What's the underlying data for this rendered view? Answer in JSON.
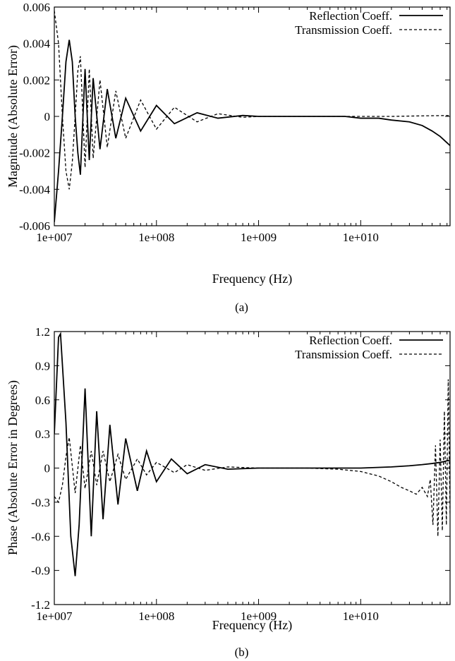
{
  "chart_data": [
    {
      "type": "line",
      "caption": "(a)",
      "xlabel": "Frequency (Hz)",
      "ylabel": "Magnitude (Absolute Error)",
      "xscale": "log",
      "xlim": [
        10000000.0,
        75000000000.0
      ],
      "ylim": [
        -0.006,
        0.006
      ],
      "xticks": [
        "1e+007",
        "1e+008",
        "1e+009",
        "1e+010"
      ],
      "xtick_values": [
        10000000.0,
        100000000.0,
        1000000000.0,
        10000000000.0
      ],
      "yticks": [
        "0.006",
        "0.004",
        "0.002",
        "0",
        "-0.002",
        "-0.004",
        "-0.006"
      ],
      "ytick_values": [
        0.006,
        0.004,
        0.002,
        0,
        -0.002,
        -0.004,
        -0.006
      ],
      "legend_position": "top-right",
      "series": [
        {
          "name": "Reflection Coeff.",
          "style": "solid",
          "x": [
            10000000.0,
            11000000.0,
            12000000.0,
            13000000.0,
            14000000.0,
            15000000.0,
            16000000.0,
            17000000.0,
            18000000.0,
            20000000.0,
            22000000.0,
            24000000.0,
            28000000.0,
            33000000.0,
            40000000.0,
            50000000.0,
            70000000.0,
            100000000.0,
            150000000.0,
            250000000.0,
            400000000.0,
            700000000.0,
            1000000000.0,
            3000000000.0,
            7000000000.0,
            10000000000.0,
            15000000000.0,
            20000000000.0,
            30000000000.0,
            40000000000.0,
            50000000000.0,
            60000000000.0,
            75000000000.0
          ],
          "y": [
            -0.0058,
            -0.003,
            0.0,
            0.003,
            0.0042,
            0.003,
            0.0,
            -0.002,
            -0.0032,
            0.0026,
            -0.0024,
            0.0021,
            -0.0018,
            0.0015,
            -0.0012,
            0.001,
            -0.0008,
            0.0006,
            -0.0004,
            0.0002,
            -0.0001,
            5e-05,
            0.0,
            0.0,
            0.0,
            -0.0001,
            -0.0001,
            -0.0002,
            -0.0003,
            -0.0005,
            -0.0008,
            -0.0011,
            -0.0016
          ]
        },
        {
          "name": "Transmission Coeff.",
          "style": "dashed",
          "x": [
            10000000.0,
            11000000.0,
            12000000.0,
            13000000.0,
            14000000.0,
            15000000.0,
            16000000.0,
            17000000.0,
            18000000.0,
            20000000.0,
            22000000.0,
            24000000.0,
            28000000.0,
            33000000.0,
            40000000.0,
            50000000.0,
            70000000.0,
            100000000.0,
            150000000.0,
            250000000.0,
            400000000.0,
            700000000.0,
            1000000000.0,
            3000000000.0,
            7000000000.0,
            10000000000.0,
            20000000000.0,
            40000000000.0,
            75000000000.0
          ],
          "y": [
            0.0058,
            0.004,
            0.0,
            -0.003,
            -0.004,
            -0.0025,
            0.0,
            0.0025,
            0.0033,
            -0.0028,
            0.0026,
            -0.0023,
            0.002,
            -0.0017,
            0.0014,
            -0.0012,
            0.0009,
            -0.0007,
            0.0005,
            -0.0003,
            0.00015,
            -5e-05,
            0.0,
            0.0,
            0.0,
            0.0,
            0.0,
            3e-05,
            5e-05
          ]
        }
      ]
    },
    {
      "type": "line",
      "caption": "(b)",
      "xlabel": "Frequency (Hz)",
      "ylabel": "Phase (Absolute Error in Degrees)",
      "xscale": "log",
      "xlim": [
        10000000.0,
        75000000000.0
      ],
      "ylim": [
        -1.2,
        1.2
      ],
      "xticks": [
        "1e+007",
        "1e+008",
        "1e+009",
        "1e+010"
      ],
      "xtick_values": [
        10000000.0,
        100000000.0,
        1000000000.0,
        10000000000.0
      ],
      "yticks": [
        "1.2",
        "0.9",
        "0.6",
        "0.3",
        "0",
        "-0.3",
        "-0.6",
        "-0.9",
        "-1.2"
      ],
      "ytick_values": [
        1.2,
        0.9,
        0.6,
        0.3,
        0,
        -0.3,
        -0.6,
        -0.9,
        -1.2
      ],
      "legend_position": "top-right",
      "series": [
        {
          "name": "Reflection Coeff.",
          "style": "solid",
          "x": [
            10000000.0,
            11000000.0,
            11500000.0,
            13000000.0,
            14500000.0,
            16000000.0,
            17500000.0,
            20000000.0,
            23000000.0,
            26000000.0,
            30000000.0,
            35000000.0,
            42000000.0,
            50000000.0,
            65000000.0,
            80000000.0,
            100000000.0,
            140000000.0,
            200000000.0,
            300000000.0,
            500000000.0,
            1000000000.0,
            3000000000.0,
            7000000000.0,
            10000000000.0,
            20000000000.0,
            30000000000.0,
            40000000000.0,
            50000000000.0,
            60000000000.0,
            75000000000.0
          ],
          "y": [
            0.3,
            1.15,
            1.18,
            0.4,
            -0.6,
            -0.95,
            -0.5,
            0.7,
            -0.6,
            0.5,
            -0.45,
            0.38,
            -0.32,
            0.26,
            -0.2,
            0.15,
            -0.12,
            0.08,
            -0.05,
            0.03,
            -0.01,
            0.0,
            0.0,
            0.0,
            0.0,
            0.01,
            0.02,
            0.03,
            0.04,
            0.05,
            0.07
          ]
        },
        {
          "name": "Transmission Coeff.",
          "style": "dashed",
          "x": [
            10000000.0,
            11000000.0,
            12000000.0,
            13000000.0,
            14000000.0,
            16000000.0,
            18000000.0,
            20000000.0,
            23000000.0,
            26000000.0,
            30000000.0,
            35000000.0,
            42000000.0,
            50000000.0,
            65000000.0,
            80000000.0,
            100000000.0,
            150000000.0,
            200000000.0,
            300000000.0,
            500000000.0,
            1000000000.0,
            3000000000.0,
            6000000000.0,
            10000000000.0,
            15000000000.0,
            20000000000.0,
            25000000000.0,
            30000000000.0,
            35000000000.0,
            40000000000.0,
            45000000000.0,
            48000000000.0,
            51000000000.0,
            54000000000.0,
            57000000000.0,
            60000000000.0,
            63000000000.0,
            66000000000.0,
            69000000000.0,
            72000000000.0,
            75000000000.0
          ],
          "y": [
            -0.25,
            -0.3,
            -0.15,
            0.1,
            0.27,
            -0.22,
            0.2,
            -0.18,
            0.15,
            -0.15,
            0.15,
            -0.12,
            0.12,
            -0.1,
            0.08,
            -0.06,
            0.05,
            -0.04,
            0.03,
            -0.02,
            0.01,
            0.0,
            0.0,
            -0.01,
            -0.03,
            -0.07,
            -0.12,
            -0.17,
            -0.2,
            -0.23,
            -0.17,
            -0.25,
            -0.1,
            -0.5,
            0.2,
            -0.6,
            0.25,
            -0.55,
            0.5,
            -0.5,
            0.78,
            -0.4
          ]
        }
      ]
    }
  ]
}
